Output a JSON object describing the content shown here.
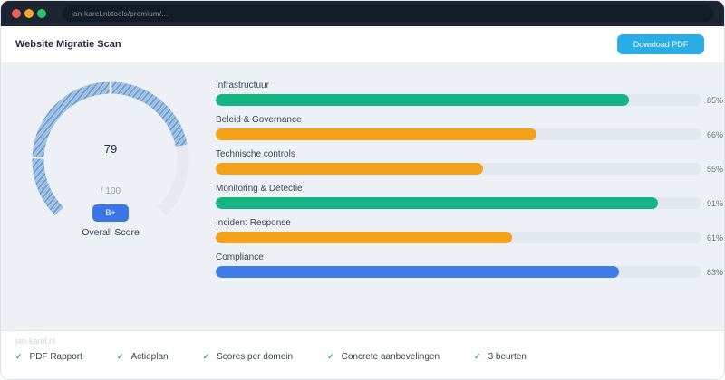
{
  "browser": {
    "url": "jan-karel.nl/tools/premium/...",
    "dot_colors": [
      "#ee5f58",
      "#f2a72e",
      "#2dc26e"
    ]
  },
  "header": {
    "title": "Website Migratie Scan",
    "download_button": "Download PDF",
    "button_color": "#29ade4"
  },
  "gauge": {
    "score": "79",
    "max_label": "/ 100",
    "grade": "B+",
    "caption": "Overall Score",
    "percent": 79,
    "arc_color": "#6d9dd1",
    "arc_fill_light": "#b9cfe9",
    "track_color": "#e6eaf0",
    "badge_color": "#3b76e4"
  },
  "chart_data": {
    "type": "bar",
    "orientation": "horizontal",
    "title": "Scores per domein",
    "categories": [
      "Infrastructuur",
      "Beleid & Governance",
      "Technische controls",
      "Monitoring & Detectie",
      "Incident Response",
      "Compliance"
    ],
    "values": [
      85,
      66,
      55,
      91,
      61,
      83
    ],
    "value_labels": [
      "85%",
      "66%",
      "55%",
      "91%",
      "61%",
      "83%"
    ],
    "bar_colors": [
      "#14b582",
      "#f2a118",
      "#f2a118",
      "#14b582",
      "#f2a118",
      "#3f7ee8"
    ],
    "xlim": [
      0,
      100
    ],
    "track_color": "#e3e8ee",
    "grid": false,
    "legend": false
  },
  "footer": {
    "site": "jan-karel.nl",
    "check_color": "#2bb57f",
    "check_glyph": "✓",
    "features": [
      {
        "label": "PDF Rapport"
      },
      {
        "label": "Actieplan"
      },
      {
        "label": "Scores per domein"
      },
      {
        "label": "Concrete aanbevelingen"
      },
      {
        "label": "3 beurten"
      }
    ]
  }
}
